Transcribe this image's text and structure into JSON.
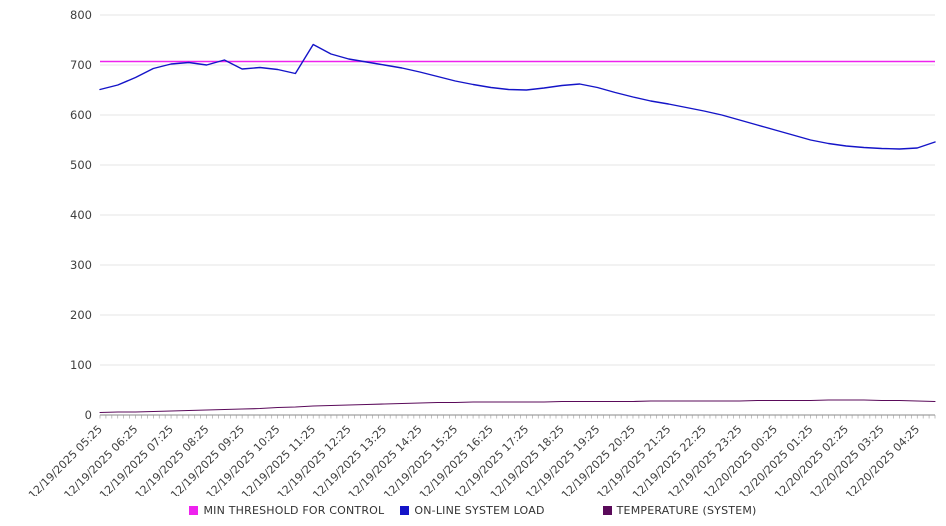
{
  "chart_data": {
    "type": "line",
    "title": "",
    "xlabel": "",
    "ylabel": "",
    "grid": true,
    "legend_position": "bottom",
    "points_per_hour": 2,
    "y_axis": {
      "min": 0,
      "max": 800,
      "tick_step": 100,
      "ticks": [
        0,
        100,
        200,
        300,
        400,
        500,
        600,
        700,
        800
      ]
    },
    "x_axis": {
      "label_rotation": -45,
      "labels": [
        "12/19/2025 05:25",
        "12/19/2025 06:25",
        "12/19/2025 07:25",
        "12/19/2025 08:25",
        "12/19/2025 09:25",
        "12/19/2025 10:25",
        "12/19/2025 11:25",
        "12/19/2025 12:25",
        "12/19/2025 13:25",
        "12/19/2025 14:25",
        "12/19/2025 15:25",
        "12/19/2025 16:25",
        "12/19/2025 17:25",
        "12/19/2025 18:25",
        "12/19/2025 19:25",
        "12/19/2025 20:25",
        "12/19/2025 21:25",
        "12/19/2025 22:25",
        "12/19/2025 23:25",
        "12/20/2025 00:25",
        "12/20/2025 01:25",
        "12/20/2025 02:25",
        "12/20/2025 03:25",
        "12/20/2025 04:25"
      ]
    },
    "series": [
      {
        "name": "MIN THRESHOLD FOR CONTROL",
        "color": "#ee22ee",
        "kind": "threshold",
        "value": 707
      },
      {
        "name": "ON-LINE SYSTEM LOAD",
        "color": "#1414c8",
        "kind": "line",
        "values": [
          651,
          660,
          675,
          693,
          702,
          705,
          700,
          710,
          692,
          695,
          691,
          683,
          741,
          722,
          712,
          706,
          700,
          694,
          686,
          677,
          668,
          661,
          655,
          651,
          650,
          654,
          659,
          662,
          655,
          645,
          636,
          628,
          622,
          615,
          608,
          600,
          590,
          580,
          570,
          560,
          550,
          543,
          538,
          535,
          533,
          532,
          534,
          546
        ]
      },
      {
        "name": "TEMPERATURE (SYSTEM)",
        "color": "#5a0a5a",
        "kind": "line",
        "values": [
          5,
          6,
          6,
          7,
          8,
          9,
          10,
          11,
          12,
          13,
          15,
          16,
          18,
          19,
          20,
          21,
          22,
          23,
          24,
          25,
          25,
          26,
          26,
          26,
          26,
          26,
          27,
          27,
          27,
          27,
          27,
          28,
          28,
          28,
          28,
          28,
          28,
          29,
          29,
          29,
          29,
          30,
          30,
          30,
          29,
          29,
          28,
          27
        ]
      }
    ],
    "colors": {
      "grid": "#e4e4e4",
      "axis": "#888888",
      "tick": "#999999",
      "label_text": "#404040"
    }
  }
}
